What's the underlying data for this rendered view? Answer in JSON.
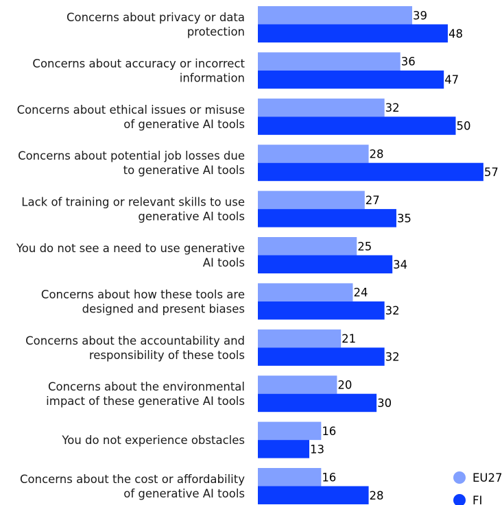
{
  "chart_data": {
    "type": "bar",
    "orientation": "horizontal",
    "title": "",
    "xlabel": "",
    "ylabel": "",
    "categories": [
      [
        "Concerns about privacy or data",
        "protection"
      ],
      [
        "Concerns about accuracy or incorrect",
        "information"
      ],
      [
        "Concerns about ethical issues or misuse",
        "of generative AI tools"
      ],
      [
        "Concerns about potential job losses due",
        "to generative AI tools"
      ],
      [
        "Lack of training or relevant skills to use",
        "generative AI tools"
      ],
      [
        "You do not see a need to use generative",
        "AI tools"
      ],
      [
        "Concerns about how these tools are",
        "designed and present biases"
      ],
      [
        "Concerns about the accountability and",
        "responsibility of these tools"
      ],
      [
        "Concerns about the environmental",
        "impact of these generative AI tools"
      ],
      [
        "You do not experience obstacles"
      ],
      [
        "Concerns about the cost or affordability",
        "of generative AI tools"
      ]
    ],
    "series": [
      {
        "name": "EU27",
        "color": "#82a0ff",
        "values": [
          39,
          36,
          32,
          28,
          27,
          25,
          24,
          21,
          20,
          16,
          16
        ]
      },
      {
        "name": "FI",
        "color": "#0a3cff",
        "values": [
          48,
          47,
          50,
          57,
          35,
          34,
          32,
          32,
          30,
          13,
          28
        ]
      }
    ],
    "xlim": [
      0,
      57
    ],
    "grid": false,
    "data_labels": true,
    "legend_position": "bottom-right"
  }
}
